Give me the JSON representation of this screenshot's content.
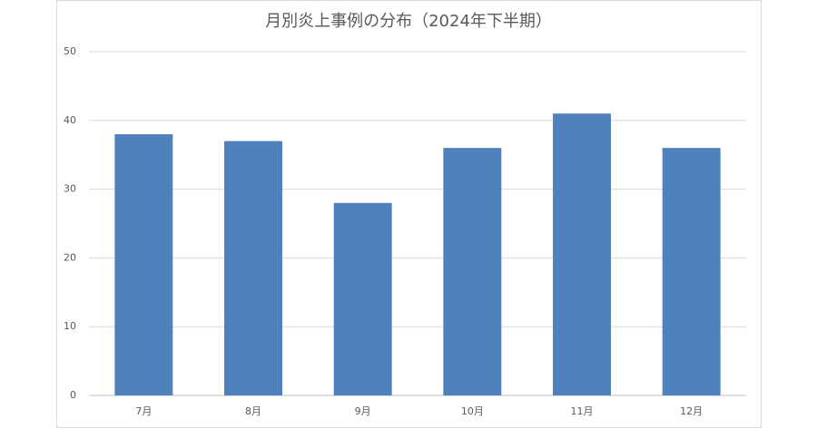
{
  "chart_data": {
    "type": "bar",
    "title": "月別炎上事例の分布（2024年下半期）",
    "categories": [
      "7月",
      "8月",
      "9月",
      "10月",
      "11月",
      "12月"
    ],
    "values": [
      38,
      37,
      28,
      36,
      41,
      36
    ],
    "color": "#4f81bd",
    "ylim": [
      0,
      50
    ],
    "yticks": [
      0,
      10,
      20,
      30,
      40,
      50
    ],
    "grid": true
  }
}
